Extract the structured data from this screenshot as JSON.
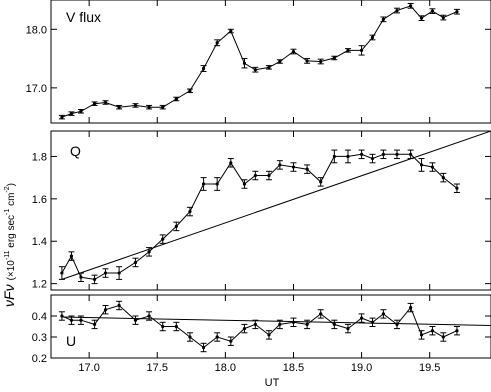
{
  "chart_data": [
    {
      "type": "line",
      "panel_label": "V flux",
      "ylim": [
        16.4,
        18.5
      ],
      "yticks": [
        17.0,
        18.0
      ],
      "ytick_labels": [
        "17.0",
        "18.0"
      ],
      "x": [
        16.8,
        16.87,
        16.94,
        17.04,
        17.12,
        17.22,
        17.34,
        17.44,
        17.54,
        17.64,
        17.74,
        17.84,
        17.94,
        18.04,
        18.14,
        18.22,
        18.32,
        18.4,
        18.5,
        18.6,
        18.7,
        18.8,
        18.9,
        19.0,
        19.08,
        19.16,
        19.26,
        19.36,
        19.44,
        19.52,
        19.6,
        19.7
      ],
      "y": [
        16.5,
        16.56,
        16.6,
        16.73,
        16.75,
        16.67,
        16.7,
        16.67,
        16.67,
        16.81,
        16.95,
        17.33,
        17.77,
        17.97,
        17.42,
        17.31,
        17.35,
        17.45,
        17.62,
        17.46,
        17.45,
        17.51,
        17.64,
        17.64,
        17.86,
        18.17,
        18.32,
        18.4,
        18.19,
        18.31,
        18.2,
        18.3
      ],
      "err": [
        0.03,
        0.03,
        0.03,
        0.03,
        0.03,
        0.03,
        0.03,
        0.03,
        0.03,
        0.03,
        0.03,
        0.05,
        0.05,
        0.03,
        0.08,
        0.04,
        0.03,
        0.03,
        0.04,
        0.04,
        0.04,
        0.03,
        0.03,
        0.08,
        0.04,
        0.04,
        0.04,
        0.04,
        0.04,
        0.04,
        0.04,
        0.04
      ]
    },
    {
      "type": "line",
      "panel_label": "Q",
      "ylim": [
        1.17,
        1.92
      ],
      "yticks": [
        1.2,
        1.4,
        1.6,
        1.8
      ],
      "ytick_labels": [
        "1.2",
        "1.4",
        "1.6",
        "1.8"
      ],
      "x": [
        16.8,
        16.87,
        16.94,
        17.04,
        17.12,
        17.22,
        17.34,
        17.44,
        17.54,
        17.64,
        17.74,
        17.84,
        17.94,
        18.04,
        18.14,
        18.22,
        18.32,
        18.4,
        18.5,
        18.6,
        18.7,
        18.8,
        18.9,
        19.0,
        19.08,
        19.16,
        19.26,
        19.36,
        19.44,
        19.52,
        19.6,
        19.7
      ],
      "y": [
        1.25,
        1.33,
        1.23,
        1.22,
        1.25,
        1.25,
        1.3,
        1.35,
        1.41,
        1.47,
        1.54,
        1.67,
        1.67,
        1.77,
        1.67,
        1.71,
        1.71,
        1.76,
        1.75,
        1.74,
        1.68,
        1.8,
        1.8,
        1.81,
        1.79,
        1.81,
        1.81,
        1.81,
        1.76,
        1.75,
        1.7,
        1.65
      ],
      "err": [
        0.03,
        0.02,
        0.02,
        0.02,
        0.02,
        0.03,
        0.02,
        0.02,
        0.02,
        0.02,
        0.02,
        0.03,
        0.03,
        0.02,
        0.02,
        0.02,
        0.02,
        0.02,
        0.02,
        0.02,
        0.02,
        0.03,
        0.03,
        0.02,
        0.02,
        0.02,
        0.02,
        0.02,
        0.03,
        0.02,
        0.02,
        0.02
      ],
      "fit_line": {
        "x": [
          16.8,
          19.95
        ],
        "y": [
          1.22,
          1.92
        ]
      }
    },
    {
      "type": "line",
      "panel_label": "U",
      "ylim": [
        0.2,
        0.5
      ],
      "yticks": [
        0.2,
        0.3,
        0.4
      ],
      "ytick_labels": [
        "0.2",
        "0.3",
        "0.4"
      ],
      "x": [
        16.8,
        16.87,
        16.94,
        17.04,
        17.12,
        17.22,
        17.34,
        17.44,
        17.54,
        17.64,
        17.74,
        17.84,
        17.94,
        18.04,
        18.14,
        18.22,
        18.32,
        18.4,
        18.5,
        18.6,
        18.7,
        18.8,
        18.9,
        19.0,
        19.08,
        19.16,
        19.26,
        19.36,
        19.44,
        19.52,
        19.6,
        19.7
      ],
      "y": [
        0.4,
        0.38,
        0.38,
        0.36,
        0.43,
        0.45,
        0.38,
        0.4,
        0.35,
        0.35,
        0.3,
        0.25,
        0.3,
        0.28,
        0.34,
        0.36,
        0.31,
        0.36,
        0.37,
        0.36,
        0.41,
        0.36,
        0.34,
        0.39,
        0.37,
        0.41,
        0.36,
        0.44,
        0.31,
        0.33,
        0.3,
        0.33
      ],
      "err": [
        0.02,
        0.02,
        0.02,
        0.02,
        0.02,
        0.02,
        0.02,
        0.02,
        0.02,
        0.02,
        0.02,
        0.02,
        0.02,
        0.02,
        0.02,
        0.02,
        0.02,
        0.02,
        0.02,
        0.02,
        0.02,
        0.02,
        0.02,
        0.02,
        0.02,
        0.02,
        0.02,
        0.02,
        0.02,
        0.02,
        0.02,
        0.02
      ],
      "fit_line": {
        "x": [
          16.8,
          19.95
        ],
        "y": [
          0.395,
          0.355
        ]
      }
    }
  ],
  "axes": {
    "xlim": [
      16.72,
      19.95
    ],
    "xticks": [
      17.0,
      17.5,
      18.0,
      18.5,
      19.0,
      19.5
    ],
    "xtick_labels": [
      "17.0",
      "17.5",
      "18.0",
      "18.5",
      "19.0",
      "19.5"
    ],
    "xlabel": "UT",
    "ylabel_main": "νFν",
    "ylabel_unit_prefix": "(×10",
    "ylabel_unit_exp": "-11",
    "ylabel_unit_suffix": " erg sec",
    "ylabel_unit_exp2": "-1",
    "ylabel_unit_suffix2": " cm",
    "ylabel_unit_exp3": "-2",
    "ylabel_unit_close": ")"
  }
}
